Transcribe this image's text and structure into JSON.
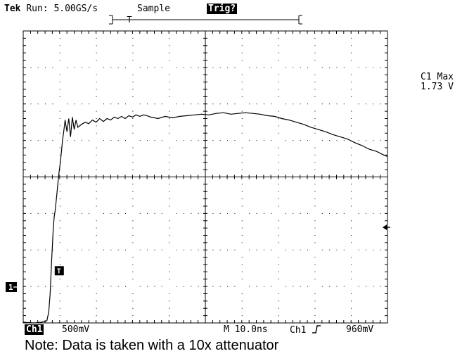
{
  "header": {
    "brand": "Tek",
    "run": "Run: 5.00GS/s",
    "mode": "Sample",
    "trig_status": "Trig?"
  },
  "measurement": {
    "label": "C1 Max",
    "value": "1.73 V"
  },
  "markers": {
    "channel": "1",
    "trigger": "T"
  },
  "status": {
    "channel": "Ch1",
    "scale": "500mV",
    "timebase": "M 10.0ns",
    "trigger_source": "Ch1",
    "trigger_slope_icon": "rising-edge-icon",
    "trigger_level": "960mV"
  },
  "note": "Note: Data is taken with a 10x attenuator",
  "colors": {
    "trace": "#000000",
    "graticule": "#000000",
    "background": "#ffffff"
  },
  "chart_data": {
    "type": "line",
    "x_unit": "ns",
    "y_unit": "V",
    "xlim": [
      -25,
      75
    ],
    "ylim": [
      -2.5,
      1.5
    ],
    "x_divisions": 10,
    "y_divisions": 8,
    "x_per_div": 10,
    "y_per_div": 0.5,
    "grid": true,
    "ground_level": -2.5,
    "trigger_level": 0.96,
    "trigger_time": -20,
    "record_window": [
      -22.5,
      18.5
    ],
    "series": [
      {
        "x": [
          -25,
          -22,
          -20,
          -18.5,
          -18,
          -17.6,
          -17.2,
          -16.8,
          -16.5,
          -16.2,
          -15.8,
          -15.5,
          -15.2,
          -14.8,
          -14.5,
          -14.2,
          -13.8,
          -13.5,
          -13,
          -12.5,
          -12,
          -11.5,
          -11,
          -10.5,
          -10,
          -9,
          -8,
          -7,
          -6,
          -5,
          -4,
          -3,
          -2,
          -1,
          0,
          1,
          2,
          3,
          4,
          5,
          6,
          7,
          8,
          9,
          10,
          12,
          14,
          16,
          18,
          20,
          22,
          24,
          26,
          28,
          30,
          32,
          34,
          36,
          38,
          40,
          42,
          44,
          46,
          48,
          50,
          52,
          54,
          56,
          58,
          60,
          62,
          64,
          66,
          68,
          70,
          72,
          74,
          75
        ],
        "y": [
          -2.49,
          -2.5,
          -2.49,
          -2.47,
          -2.35,
          -2.1,
          -1.65,
          -1.25,
          -1.05,
          -0.95,
          -0.75,
          -0.6,
          -0.45,
          -0.3,
          -0.15,
          0.0,
          0.15,
          0.28,
          0.12,
          0.3,
          0.05,
          0.32,
          0.15,
          0.28,
          0.18,
          0.22,
          0.25,
          0.23,
          0.28,
          0.25,
          0.3,
          0.26,
          0.3,
          0.28,
          0.32,
          0.3,
          0.33,
          0.3,
          0.34,
          0.32,
          0.35,
          0.33,
          0.35,
          0.34,
          0.32,
          0.3,
          0.33,
          0.31,
          0.33,
          0.34,
          0.35,
          0.36,
          0.35,
          0.37,
          0.38,
          0.36,
          0.37,
          0.38,
          0.37,
          0.36,
          0.34,
          0.33,
          0.3,
          0.28,
          0.25,
          0.22,
          0.18,
          0.15,
          0.12,
          0.08,
          0.05,
          0.02,
          -0.03,
          -0.07,
          -0.12,
          -0.15,
          -0.2,
          -0.22
        ]
      }
    ]
  }
}
